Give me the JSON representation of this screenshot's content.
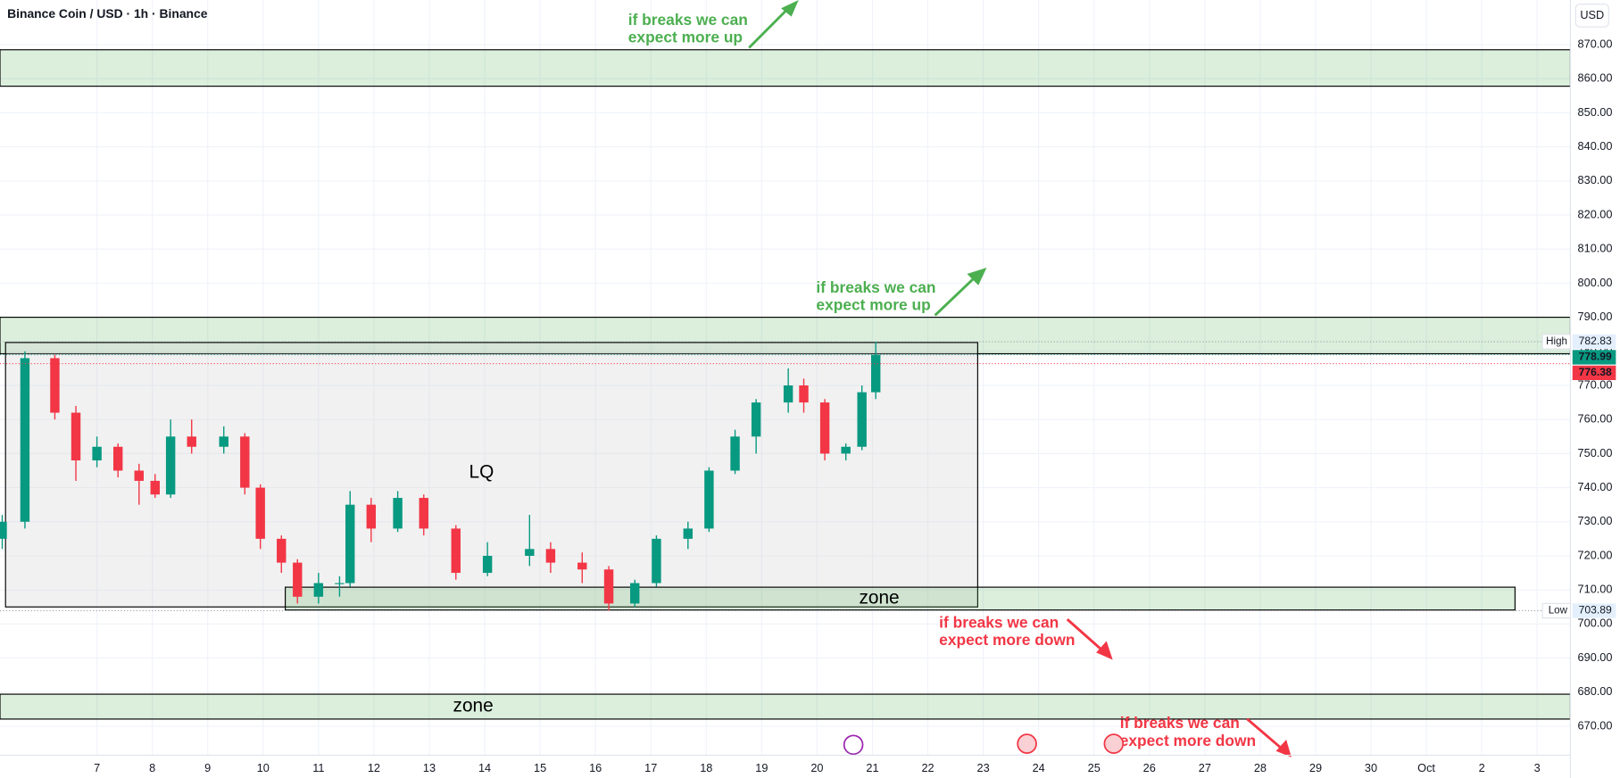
{
  "header": {
    "title": "Binance Coin / USD · 1h · Binance",
    "currency_button": "USD"
  },
  "chart_data": {
    "type": "candlestick",
    "xlim": [
      5.25,
      33.6
    ],
    "xticks": [
      7,
      8,
      9,
      10,
      11,
      12,
      13,
      14,
      15,
      16,
      17,
      18,
      19,
      20,
      21,
      22,
      23,
      24,
      25,
      26,
      27,
      28,
      29,
      30,
      {
        "value": 31,
        "label": "Oct"
      },
      {
        "value": 32,
        "label": "2"
      },
      {
        "value": 33,
        "label": "3"
      }
    ],
    "ylim": [
      661.5,
      883.1
    ],
    "yticks": [
      {
        "value": 670,
        "label": "670.00"
      },
      {
        "value": 680,
        "label": "680.00"
      },
      {
        "value": 690,
        "label": "690.00"
      },
      {
        "value": 700,
        "label": "700.00"
      },
      {
        "value": 710,
        "label": "710.00"
      },
      {
        "value": 720,
        "label": "720.00"
      },
      {
        "value": 730,
        "label": "730.00"
      },
      {
        "value": 740,
        "label": "740.00"
      },
      {
        "value": 750,
        "label": "750.00"
      },
      {
        "value": 760,
        "label": "760.00"
      },
      {
        "value": 770,
        "label": "770.00"
      },
      {
        "value": 780,
        "label": "780.00"
      },
      {
        "value": 790,
        "label": "790.00"
      },
      {
        "value": 800,
        "label": "800.00"
      },
      {
        "value": 810,
        "label": "810.00"
      },
      {
        "value": 820,
        "label": "820.00"
      },
      {
        "value": 830,
        "label": "830.00"
      },
      {
        "value": 840,
        "label": "840.00"
      },
      {
        "value": 850,
        "label": "850.00"
      },
      {
        "value": 860,
        "label": "860.00"
      },
      {
        "value": 870,
        "label": "870.00"
      }
    ],
    "grid": true,
    "up_color": "#089981",
    "down_color": "#f23645",
    "x": [
      5.29,
      5.7,
      6.24,
      6.62,
      7.0,
      7.38,
      7.76,
      8.05,
      8.33,
      8.71,
      9.29,
      9.67,
      9.95,
      10.33,
      10.62,
      11.0,
      11.38,
      11.57,
      11.95,
      12.43,
      12.9,
      13.48,
      14.05,
      14.81,
      15.19,
      15.76,
      16.24,
      16.71,
      17.1,
      17.67,
      18.05,
      18.52,
      18.9,
      19.48,
      19.76,
      20.14,
      20.52,
      20.81,
      21.06
    ],
    "open": [
      725,
      730,
      778,
      762,
      748,
      752,
      745,
      742,
      738,
      755,
      752,
      755,
      740,
      725,
      718,
      708,
      712,
      712,
      735,
      728,
      737,
      728,
      715,
      720,
      722,
      718,
      716,
      706,
      712,
      725,
      728,
      745,
      755,
      765,
      770,
      765,
      750,
      752,
      768
    ],
    "high": [
      732,
      780,
      779,
      764,
      755,
      753,
      747,
      744,
      760,
      760,
      758,
      756,
      741,
      726,
      719,
      715,
      714,
      739,
      737,
      739,
      738,
      729,
      724,
      732,
      724,
      721,
      717,
      713,
      726,
      730,
      746,
      757,
      766,
      775,
      772,
      766,
      753,
      770,
      782.83
    ],
    "low": [
      722,
      728,
      760,
      742,
      746,
      743,
      735,
      737,
      737,
      750,
      750,
      738,
      722,
      715,
      706,
      706,
      708,
      711,
      724,
      727,
      726,
      713,
      714,
      717,
      715,
      712,
      703.89,
      705,
      711,
      722,
      727,
      744,
      750,
      762,
      762,
      748,
      748,
      751,
      766
    ],
    "close": [
      730,
      778,
      762,
      748,
      752,
      745,
      742,
      738,
      755,
      752,
      755,
      740,
      725,
      718,
      708,
      712,
      712,
      735,
      728,
      737,
      728,
      715,
      720,
      722,
      718,
      716,
      706,
      712,
      725,
      728,
      745,
      755,
      765,
      770,
      765,
      750,
      752,
      768,
      778.99
    ],
    "price_tags": [
      {
        "label": "High",
        "value": 782.83
      },
      {
        "value": 778.99
      },
      {
        "value": 776.38
      },
      {
        "label": "Low",
        "value": 703.89
      }
    ],
    "zones": [
      {
        "range": [
          857.8,
          868.5
        ]
      },
      {
        "range": [
          779.3,
          790
        ]
      },
      {
        "label": "LQ",
        "range": [
          705,
          782.6
        ],
        "x": [
          5.35,
          22.9
        ]
      },
      {
        "label": "zone",
        "range": [
          704.1,
          710.8
        ],
        "x": [
          10.4,
          32.6
        ]
      },
      {
        "label": "zone",
        "range": [
          672.1,
          679.4
        ]
      }
    ],
    "annotations": [
      {
        "lines": [
          "if breaks we can",
          "expect more up"
        ],
        "color": "#4caf50"
      },
      {
        "lines": [
          "if breaks we can",
          "expect more up"
        ],
        "color": "#4caf50"
      },
      {
        "lines": [
          "if breaks we can",
          "expect more down"
        ],
        "color": "#f23645"
      },
      {
        "lines": [
          "if breaks we can",
          "expect more down"
        ],
        "color": "#f23645"
      }
    ]
  }
}
